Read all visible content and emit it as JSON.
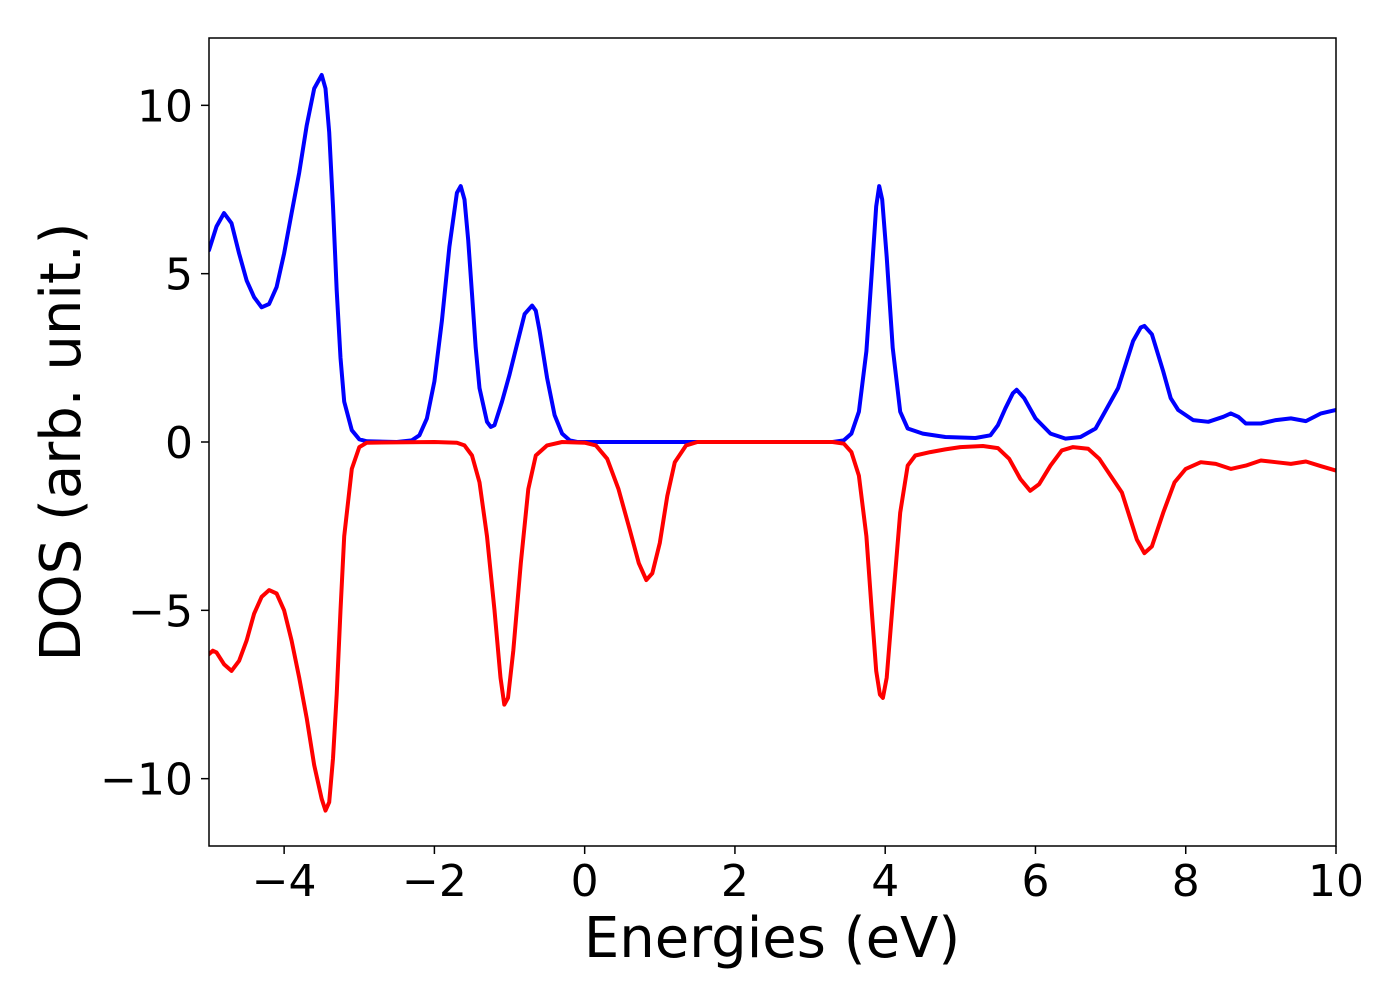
{
  "chart_data": {
    "type": "line",
    "title": "",
    "xlabel": "Energies (eV)",
    "ylabel": "DOS (arb. unit.)",
    "xlim": [
      -5,
      10
    ],
    "ylim": [
      -12,
      12
    ],
    "grid": false,
    "xticks": [
      -4,
      -2,
      0,
      2,
      4,
      6,
      8,
      10
    ],
    "yticks": [
      10,
      5,
      0,
      -5,
      -10
    ],
    "xtick_labels": [
      "−4",
      "−2",
      "0",
      "2",
      "4",
      "6",
      "8",
      "10"
    ],
    "ytick_labels": [
      "10",
      "5",
      "0",
      "−5",
      "−10"
    ],
    "series": [
      {
        "color": "#0000ff",
        "points": [
          [
            -5.0,
            5.7
          ],
          [
            -4.9,
            6.4
          ],
          [
            -4.8,
            6.8
          ],
          [
            -4.7,
            6.5
          ],
          [
            -4.6,
            5.6
          ],
          [
            -4.5,
            4.8
          ],
          [
            -4.4,
            4.3
          ],
          [
            -4.3,
            4.0
          ],
          [
            -4.2,
            4.1
          ],
          [
            -4.1,
            4.6
          ],
          [
            -4.0,
            5.6
          ],
          [
            -3.9,
            6.8
          ],
          [
            -3.8,
            8.0
          ],
          [
            -3.7,
            9.4
          ],
          [
            -3.6,
            10.5
          ],
          [
            -3.5,
            10.9
          ],
          [
            -3.45,
            10.5
          ],
          [
            -3.4,
            9.2
          ],
          [
            -3.35,
            7.0
          ],
          [
            -3.3,
            4.5
          ],
          [
            -3.25,
            2.5
          ],
          [
            -3.2,
            1.2
          ],
          [
            -3.1,
            0.35
          ],
          [
            -3.0,
            0.08
          ],
          [
            -2.9,
            0.02
          ],
          [
            -2.5,
            0.0
          ],
          [
            -2.3,
            0.05
          ],
          [
            -2.2,
            0.2
          ],
          [
            -2.1,
            0.7
          ],
          [
            -2.0,
            1.8
          ],
          [
            -1.9,
            3.6
          ],
          [
            -1.8,
            5.8
          ],
          [
            -1.7,
            7.4
          ],
          [
            -1.65,
            7.6
          ],
          [
            -1.6,
            7.2
          ],
          [
            -1.55,
            6.0
          ],
          [
            -1.5,
            4.4
          ],
          [
            -1.45,
            2.8
          ],
          [
            -1.4,
            1.6
          ],
          [
            -1.3,
            0.6
          ],
          [
            -1.25,
            0.45
          ],
          [
            -1.2,
            0.5
          ],
          [
            -1.1,
            1.2
          ],
          [
            -1.0,
            2.0
          ],
          [
            -0.9,
            2.9
          ],
          [
            -0.8,
            3.8
          ],
          [
            -0.7,
            4.05
          ],
          [
            -0.65,
            3.9
          ],
          [
            -0.6,
            3.3
          ],
          [
            -0.5,
            1.9
          ],
          [
            -0.4,
            0.8
          ],
          [
            -0.3,
            0.25
          ],
          [
            -0.2,
            0.05
          ],
          [
            -0.1,
            0.0
          ],
          [
            0.5,
            0.0
          ],
          [
            1.5,
            0.0
          ],
          [
            2.5,
            0.0
          ],
          [
            3.3,
            0.0
          ],
          [
            3.45,
            0.05
          ],
          [
            3.55,
            0.25
          ],
          [
            3.65,
            0.9
          ],
          [
            3.75,
            2.7
          ],
          [
            3.82,
            5.0
          ],
          [
            3.88,
            7.0
          ],
          [
            3.92,
            7.6
          ],
          [
            3.96,
            7.2
          ],
          [
            4.02,
            5.5
          ],
          [
            4.1,
            2.8
          ],
          [
            4.2,
            0.9
          ],
          [
            4.3,
            0.4
          ],
          [
            4.5,
            0.25
          ],
          [
            4.8,
            0.15
          ],
          [
            5.2,
            0.12
          ],
          [
            5.4,
            0.2
          ],
          [
            5.5,
            0.5
          ],
          [
            5.6,
            1.0
          ],
          [
            5.7,
            1.45
          ],
          [
            5.75,
            1.55
          ],
          [
            5.85,
            1.3
          ],
          [
            6.0,
            0.7
          ],
          [
            6.2,
            0.25
          ],
          [
            6.4,
            0.1
          ],
          [
            6.6,
            0.15
          ],
          [
            6.8,
            0.4
          ],
          [
            6.9,
            0.8
          ],
          [
            7.0,
            1.2
          ],
          [
            7.1,
            1.6
          ],
          [
            7.2,
            2.3
          ],
          [
            7.3,
            3.0
          ],
          [
            7.4,
            3.4
          ],
          [
            7.45,
            3.45
          ],
          [
            7.55,
            3.2
          ],
          [
            7.7,
            2.1
          ],
          [
            7.8,
            1.3
          ],
          [
            7.9,
            0.95
          ],
          [
            8.1,
            0.65
          ],
          [
            8.3,
            0.6
          ],
          [
            8.5,
            0.75
          ],
          [
            8.6,
            0.85
          ],
          [
            8.7,
            0.75
          ],
          [
            8.8,
            0.55
          ],
          [
            9.0,
            0.55
          ],
          [
            9.2,
            0.65
          ],
          [
            9.4,
            0.7
          ],
          [
            9.6,
            0.62
          ],
          [
            9.8,
            0.85
          ],
          [
            10.0,
            0.95
          ]
        ]
      },
      {
        "color": "#ff0000",
        "points": [
          [
            -5.0,
            -6.3
          ],
          [
            -4.95,
            -6.2
          ],
          [
            -4.9,
            -6.25
          ],
          [
            -4.8,
            -6.6
          ],
          [
            -4.7,
            -6.8
          ],
          [
            -4.6,
            -6.5
          ],
          [
            -4.5,
            -5.9
          ],
          [
            -4.4,
            -5.1
          ],
          [
            -4.3,
            -4.6
          ],
          [
            -4.2,
            -4.4
          ],
          [
            -4.1,
            -4.5
          ],
          [
            -4.0,
            -5.0
          ],
          [
            -3.9,
            -5.9
          ],
          [
            -3.8,
            -7.0
          ],
          [
            -3.7,
            -8.2
          ],
          [
            -3.6,
            -9.6
          ],
          [
            -3.5,
            -10.6
          ],
          [
            -3.45,
            -10.95
          ],
          [
            -3.4,
            -10.7
          ],
          [
            -3.35,
            -9.4
          ],
          [
            -3.3,
            -7.5
          ],
          [
            -3.25,
            -5.0
          ],
          [
            -3.2,
            -2.8
          ],
          [
            -3.1,
            -0.8
          ],
          [
            -3.0,
            -0.15
          ],
          [
            -2.9,
            -0.02
          ],
          [
            -2.0,
            -0.0
          ],
          [
            -1.7,
            -0.02
          ],
          [
            -1.6,
            -0.1
          ],
          [
            -1.5,
            -0.4
          ],
          [
            -1.4,
            -1.2
          ],
          [
            -1.3,
            -2.8
          ],
          [
            -1.2,
            -5.0
          ],
          [
            -1.12,
            -7.0
          ],
          [
            -1.07,
            -7.8
          ],
          [
            -1.02,
            -7.6
          ],
          [
            -0.95,
            -6.2
          ],
          [
            -0.85,
            -3.6
          ],
          [
            -0.75,
            -1.4
          ],
          [
            -0.65,
            -0.4
          ],
          [
            -0.5,
            -0.1
          ],
          [
            -0.3,
            -0.0
          ],
          [
            0.0,
            -0.02
          ],
          [
            0.15,
            -0.1
          ],
          [
            0.3,
            -0.5
          ],
          [
            0.45,
            -1.4
          ],
          [
            0.6,
            -2.6
          ],
          [
            0.72,
            -3.6
          ],
          [
            0.82,
            -4.1
          ],
          [
            0.9,
            -3.9
          ],
          [
            1.0,
            -3.0
          ],
          [
            1.1,
            -1.6
          ],
          [
            1.2,
            -0.6
          ],
          [
            1.35,
            -0.1
          ],
          [
            1.5,
            -0.0
          ],
          [
            3.3,
            -0.0
          ],
          [
            3.45,
            -0.05
          ],
          [
            3.55,
            -0.3
          ],
          [
            3.65,
            -1.0
          ],
          [
            3.75,
            -2.8
          ],
          [
            3.82,
            -5.0
          ],
          [
            3.88,
            -6.8
          ],
          [
            3.93,
            -7.5
          ],
          [
            3.97,
            -7.6
          ],
          [
            4.02,
            -7.0
          ],
          [
            4.1,
            -4.8
          ],
          [
            4.2,
            -2.1
          ],
          [
            4.3,
            -0.7
          ],
          [
            4.4,
            -0.4
          ],
          [
            4.6,
            -0.3
          ],
          [
            4.8,
            -0.22
          ],
          [
            5.0,
            -0.15
          ],
          [
            5.3,
            -0.12
          ],
          [
            5.5,
            -0.18
          ],
          [
            5.65,
            -0.5
          ],
          [
            5.8,
            -1.1
          ],
          [
            5.93,
            -1.45
          ],
          [
            6.05,
            -1.25
          ],
          [
            6.2,
            -0.7
          ],
          [
            6.35,
            -0.25
          ],
          [
            6.5,
            -0.15
          ],
          [
            6.7,
            -0.2
          ],
          [
            6.85,
            -0.5
          ],
          [
            7.0,
            -1.0
          ],
          [
            7.15,
            -1.5
          ],
          [
            7.25,
            -2.2
          ],
          [
            7.35,
            -2.9
          ],
          [
            7.45,
            -3.3
          ],
          [
            7.55,
            -3.1
          ],
          [
            7.7,
            -2.1
          ],
          [
            7.85,
            -1.2
          ],
          [
            8.0,
            -0.8
          ],
          [
            8.2,
            -0.6
          ],
          [
            8.4,
            -0.65
          ],
          [
            8.6,
            -0.8
          ],
          [
            8.8,
            -0.7
          ],
          [
            9.0,
            -0.55
          ],
          [
            9.2,
            -0.6
          ],
          [
            9.4,
            -0.65
          ],
          [
            9.6,
            -0.58
          ],
          [
            9.8,
            -0.72
          ],
          [
            10.0,
            -0.85
          ]
        ]
      }
    ]
  }
}
